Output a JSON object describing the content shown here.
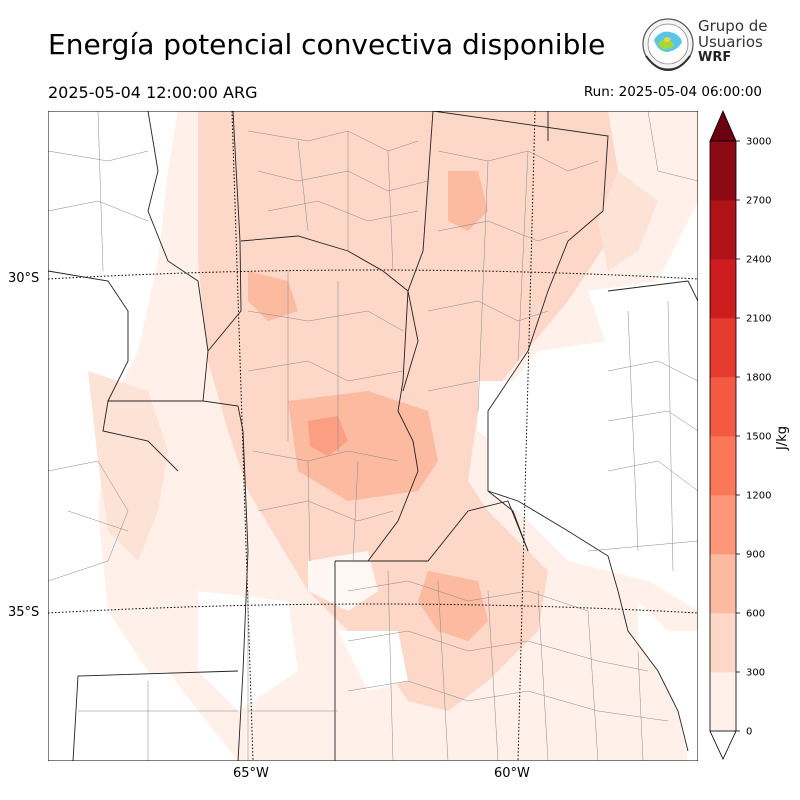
{
  "header": {
    "title": "Energía potencial convectiva disponible",
    "valid_time": "2025-05-04 12:00:00 ARG",
    "run_time": "Run: 2025-05-04 06:00:00"
  },
  "logo": {
    "line1": "Grupo de",
    "line2": "Usuarios",
    "line3": "WRF"
  },
  "map": {
    "lat_labels": [
      "30°S",
      "35°S"
    ],
    "lon_labels": [
      "65°W",
      "60°W"
    ]
  },
  "colorbar": {
    "unit": "J/kg",
    "ticks": [
      "0",
      "300",
      "600",
      "900",
      "1200",
      "1500",
      "1800",
      "2100",
      "2400",
      "2700",
      "3000"
    ],
    "colors": [
      "#fff0ea",
      "#fdd7c7",
      "#fcbaa0",
      "#fc9678",
      "#fb7757",
      "#f35a42",
      "#e53a2e",
      "#cd1c1d",
      "#ae1319",
      "#8b0a13",
      "#6b0010"
    ],
    "extend": "both"
  }
}
